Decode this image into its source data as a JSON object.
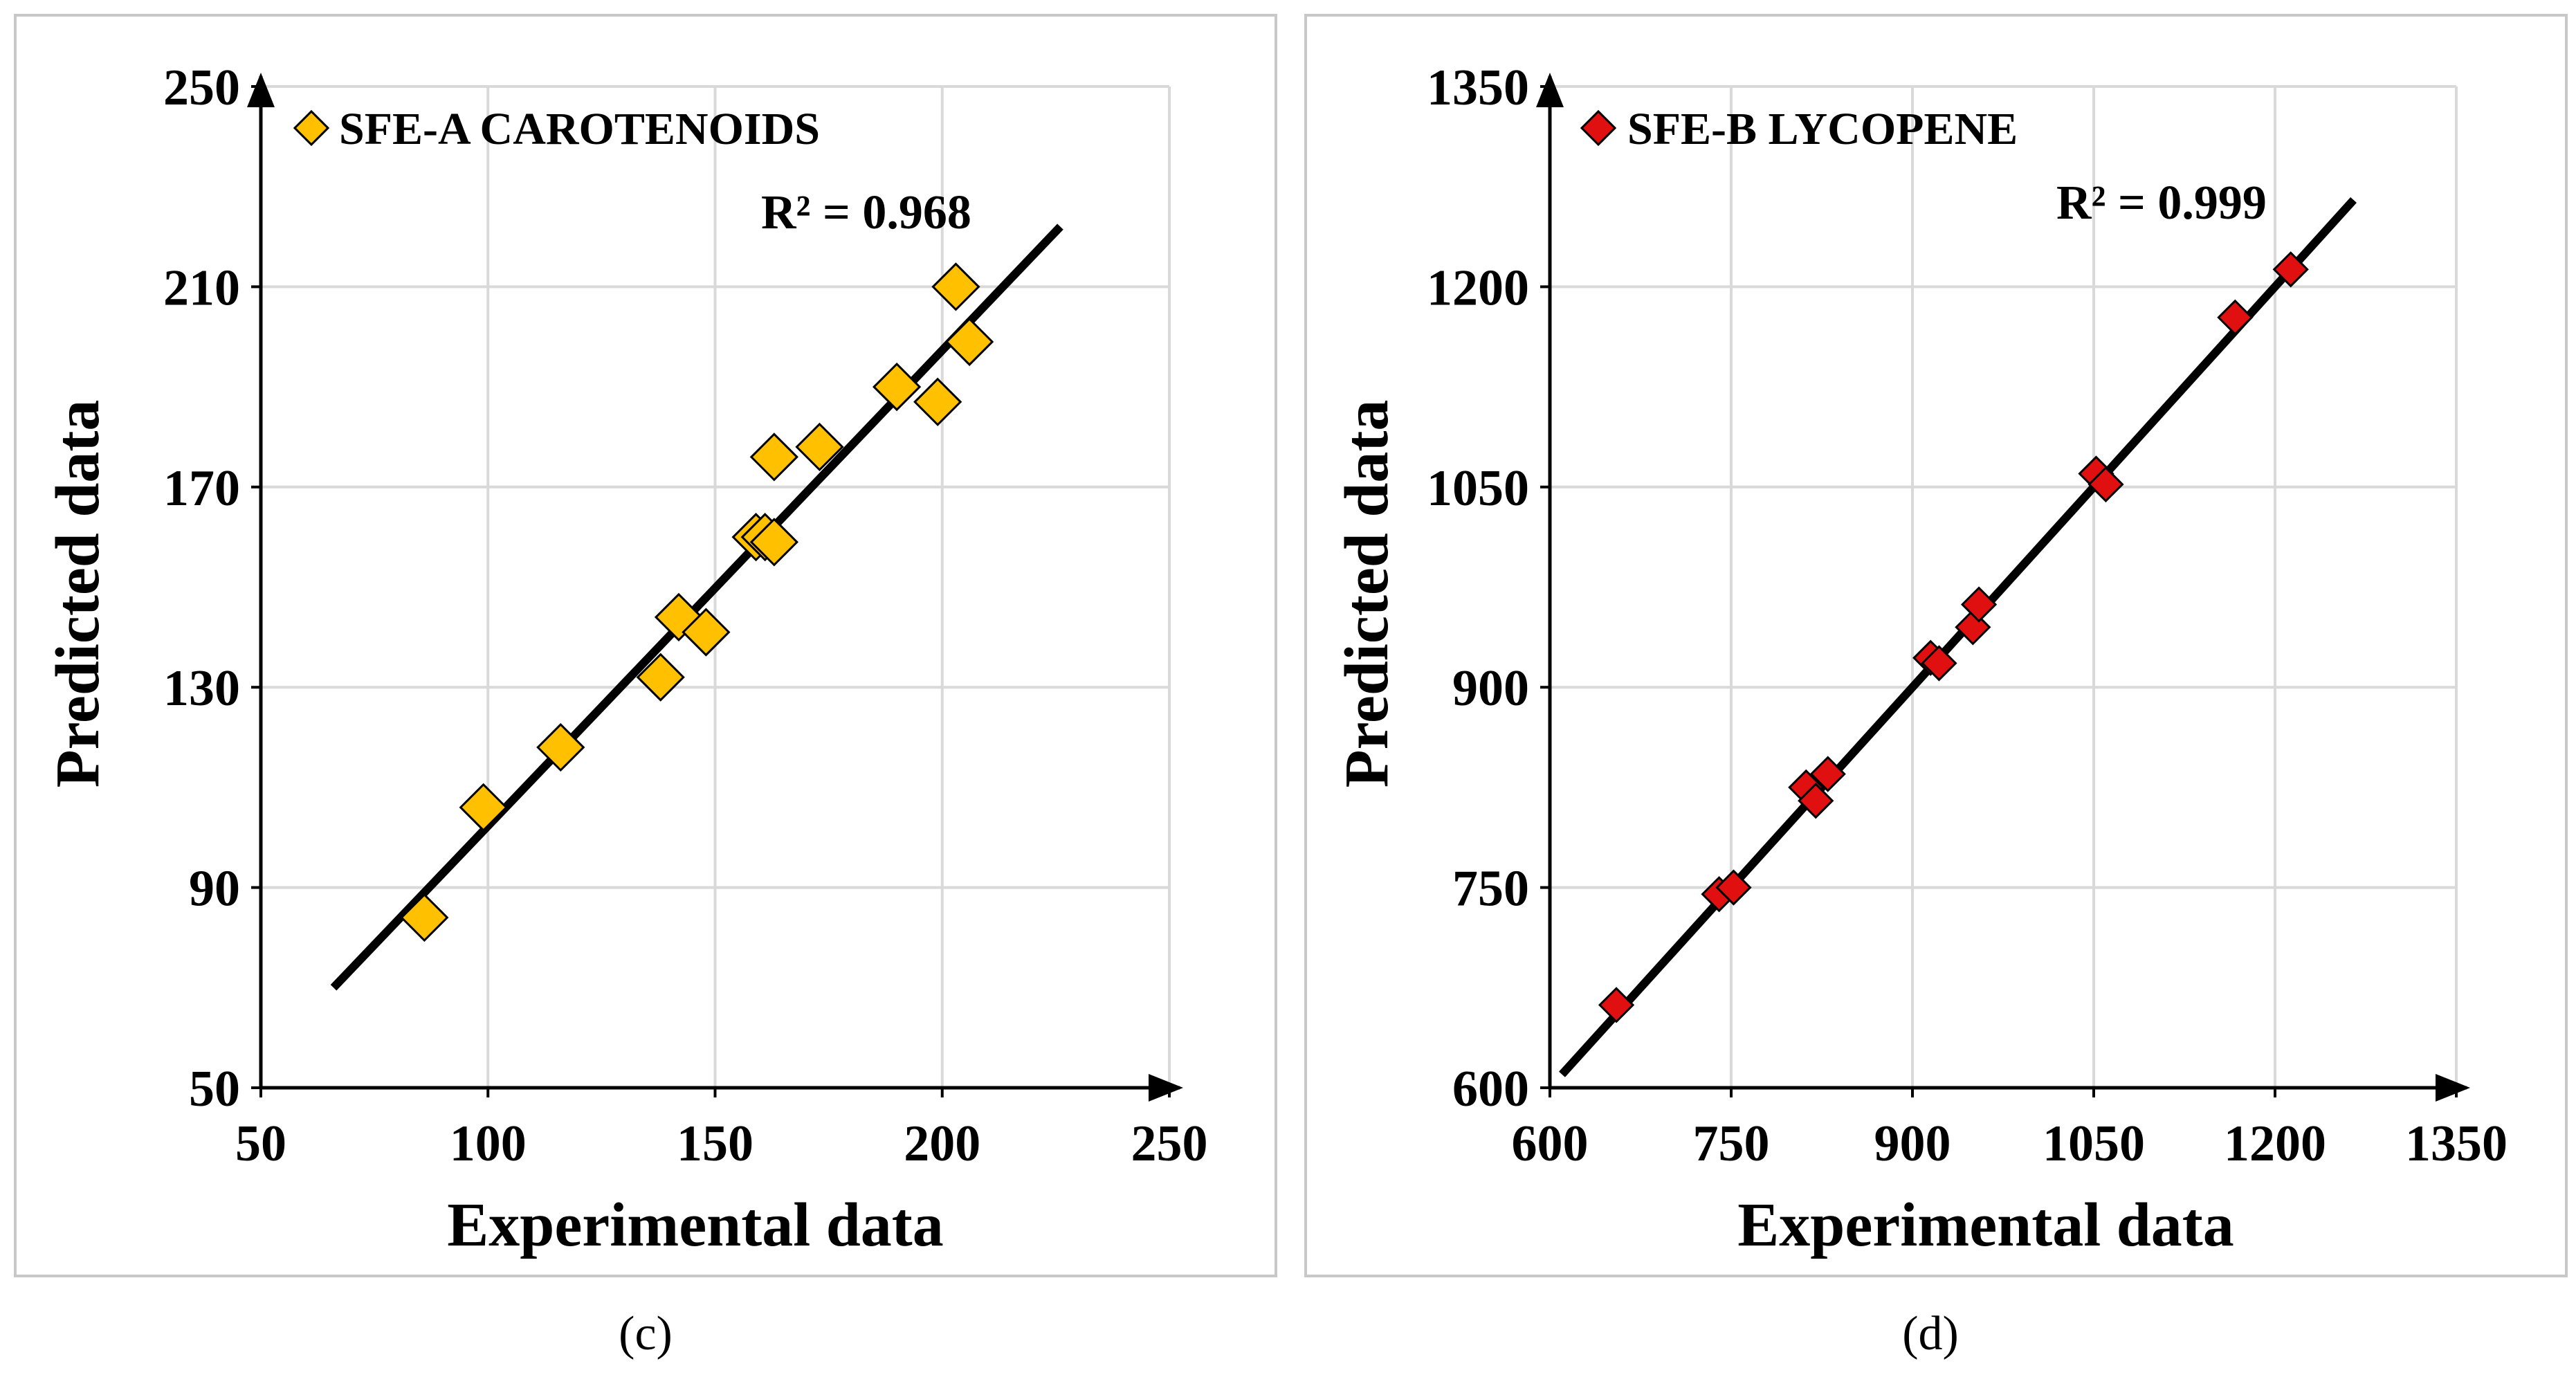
{
  "chart_data": [
    {
      "type": "scatter",
      "title": "",
      "legend": "SFE-A CAROTENOIDS",
      "xlabel": "Experimental data",
      "ylabel": "Predicted data",
      "r2": "R² = 0.968",
      "caption": "(c)",
      "xlim": [
        50,
        250
      ],
      "ylim": [
        50,
        250
      ],
      "xticks": [
        50,
        100,
        150,
        200,
        250
      ],
      "yticks": [
        50,
        90,
        130,
        170,
        210,
        250
      ],
      "fit_line": [
        [
          66,
          70
        ],
        [
          226,
          222
        ]
      ],
      "marker_color": "#FFC000",
      "x": [
        86,
        99,
        116,
        138,
        142,
        148,
        159,
        161,
        163,
        163,
        173,
        190,
        199,
        203,
        206
      ],
      "y": [
        84,
        106,
        118,
        132,
        144,
        141,
        160,
        160,
        159,
        176,
        178,
        190,
        187,
        210,
        199
      ]
    },
    {
      "type": "scatter",
      "title": "",
      "legend": "SFE-B LYCOPENE",
      "xlabel": "Experimental data",
      "ylabel": "Predicted data",
      "r2": "R² = 0.999",
      "caption": "(d)",
      "xlim": [
        600,
        1350
      ],
      "ylim": [
        600,
        1350
      ],
      "xticks": [
        600,
        750,
        900,
        1050,
        1200,
        1350
      ],
      "yticks": [
        600,
        750,
        900,
        1050,
        1200,
        1350
      ],
      "fit_line": [
        [
          610,
          610
        ],
        [
          1265,
          1265
        ]
      ],
      "marker_color": "#E01010",
      "x": [
        655,
        740,
        752,
        812,
        820,
        830,
        915,
        922,
        950,
        955,
        1052,
        1060,
        1167,
        1213
      ],
      "y": [
        662,
        745,
        750,
        825,
        815,
        835,
        922,
        918,
        945,
        962,
        1060,
        1052,
        1177,
        1213
      ]
    }
  ]
}
